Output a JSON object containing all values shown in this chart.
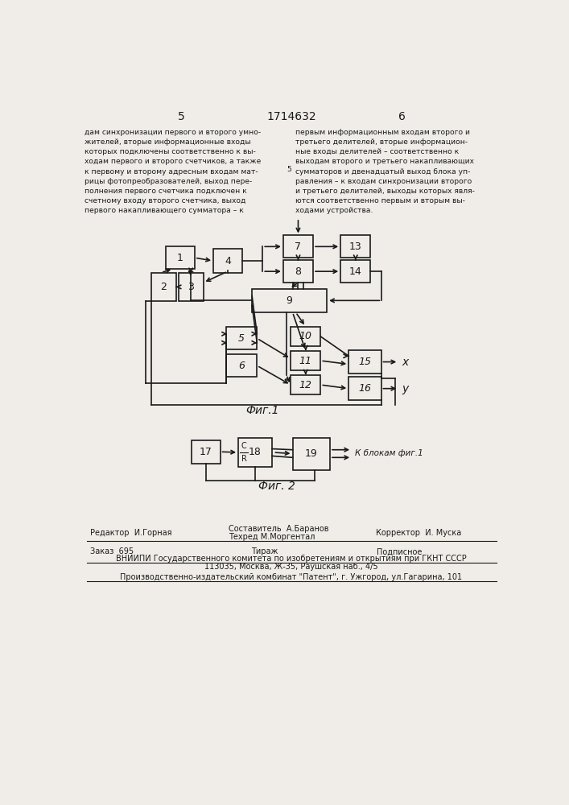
{
  "page_number_left": "5",
  "page_number_center": "1714632",
  "page_number_right": "6",
  "text_left": "дам синхронизации первого и второго умно-\nжителей, вторые информационные входы\nкоторых подключены соответственно к вы-\nходам первого и второго счетчиков, а также\nк первому и второму адресным входам мат-\nрицы фотопреобразователей, выход пере-\nполнения первого счетчика подключен к\nсчетному входу второго счетчика, выход\nпервого накапливающего сумматора – к",
  "text_right": "первым информационным входам второго и\nтретьего делителей, вторые информацион-\nные входы делителей – соответственно к\nвыходам второго и третьего накапливающих\nсумматоров и двенадцатый выход блока уп-\nравления – к входам синхронизации второго\nи третьего делителей, выходы которых явля-\nются соответственно первым и вторым вы-\nходами устройства.",
  "fig1_label": "Фиг.1",
  "fig2_label": "Фиг. 2",
  "background_color": "#f0ede8",
  "box_color": "#1a1a1a",
  "text_color": "#1a1a1a",
  "footer_editor": "Редактор  И.Горная",
  "footer_composer": "Составитель  А.Баранов",
  "footer_techred": "Техред М.Моргентал",
  "footer_corrector": "Корректор  И. Муска",
  "footer_order": "Заказ  695",
  "footer_tirazh": "Тираж",
  "footer_podpisnoe": "Подписное",
  "footer_vniipii": "ВНИИПИ Государственного комитета по изобретениям и открытиям при ГКНТ СССР",
  "footer_address": "113035, Москва, Ж-35, Раушская наб., 4/5",
  "footer_plant": "Производственно-издательский комбинат \"Патент\", г. Ужгород, ул.Гагарина, 101"
}
